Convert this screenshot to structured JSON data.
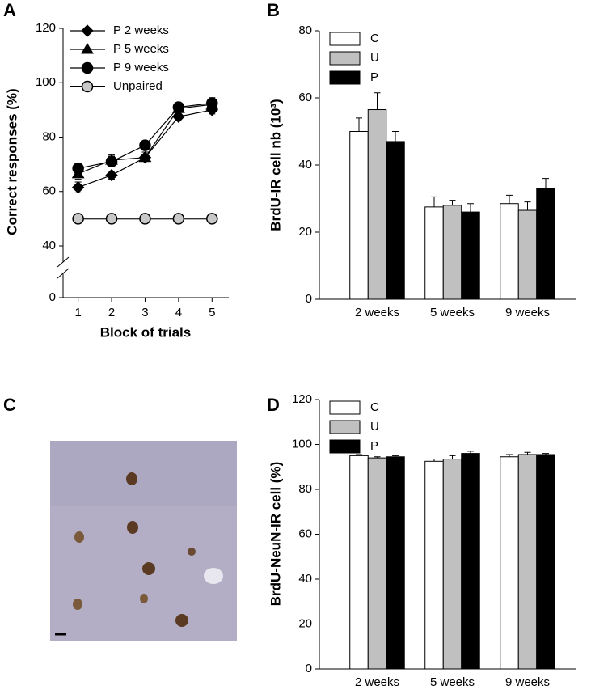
{
  "chart_data": [
    {
      "type": "line",
      "panel_label": "A",
      "y_label": "Correct responses (%)",
      "x_label": "Block of trials",
      "x": [
        1,
        2,
        3,
        4,
        5
      ],
      "xlim": [
        0.55,
        5.5
      ],
      "xticks": [
        1,
        2,
        3,
        4,
        5
      ],
      "ylim": [
        0,
        120
      ],
      "yticks": [
        0,
        40,
        60,
        80,
        100,
        120
      ],
      "y_break": [
        0,
        40
      ],
      "series": [
        {
          "name": "P 2 weeks",
          "color": "#000000",
          "marker": "diamond",
          "values": [
            61.5,
            66,
            72.5,
            87.5,
            90
          ],
          "errors": [
            2,
            1.5,
            2,
            1,
            1.5
          ]
        },
        {
          "name": "P 5 weeks",
          "color": "#000000",
          "marker": "triangle",
          "values": [
            66.5,
            71.5,
            72.5,
            90.5,
            92
          ],
          "errors": [
            2,
            2,
            2,
            1,
            1.5
          ]
        },
        {
          "name": "P 9 weeks",
          "color": "#000000",
          "marker": "circle",
          "values": [
            68.5,
            71,
            77,
            91,
            92.5
          ],
          "errors": [
            2,
            2,
            1,
            1,
            2
          ]
        },
        {
          "name": "Unpaired",
          "color": "#c8c8c8",
          "marker": "circle",
          "values": [
            50,
            50,
            50,
            50,
            50
          ]
        }
      ]
    },
    {
      "type": "bar",
      "panel_label": "B",
      "y_label": "BrdU-IR cell nb (10³)",
      "categories": [
        "2 weeks",
        "5 weeks",
        "9 weeks"
      ],
      "ylim": [
        0,
        80
      ],
      "yticks": [
        0,
        20,
        40,
        60,
        80
      ],
      "series": [
        {
          "name": "C",
          "color": "#ffffff",
          "values": [
            50,
            27.5,
            28.5
          ],
          "errors": [
            4,
            3,
            2.5
          ]
        },
        {
          "name": "U",
          "color": "#c0c0c0",
          "values": [
            56.5,
            28,
            26.5
          ],
          "errors": [
            5,
            1.5,
            2.5
          ]
        },
        {
          "name": "P",
          "color": "#000000",
          "values": [
            47,
            26,
            33
          ],
          "errors": [
            3,
            2.5,
            3
          ]
        }
      ]
    },
    {
      "type": "bar",
      "panel_label": "D",
      "y_label": "BrdU-NeuN-IR cell (%)",
      "categories": [
        "2 weeks",
        "5 weeks",
        "9 weeks"
      ],
      "ylim": [
        0,
        120
      ],
      "yticks": [
        0,
        20,
        40,
        60,
        80,
        100,
        120
      ],
      "series": [
        {
          "name": "C",
          "color": "#ffffff",
          "values": [
            95,
            92.5,
            94.5
          ],
          "errors": [
            0.5,
            1,
            1
          ]
        },
        {
          "name": "U",
          "color": "#c0c0c0",
          "values": [
            94,
            93.5,
            95.5
          ],
          "errors": [
            0.5,
            1.5,
            1
          ]
        },
        {
          "name": "P",
          "color": "#000000",
          "values": [
            94.5,
            96,
            95.5
          ],
          "errors": [
            0.5,
            1,
            0.5
          ]
        }
      ]
    }
  ],
  "image_panel": {
    "label": "C"
  }
}
